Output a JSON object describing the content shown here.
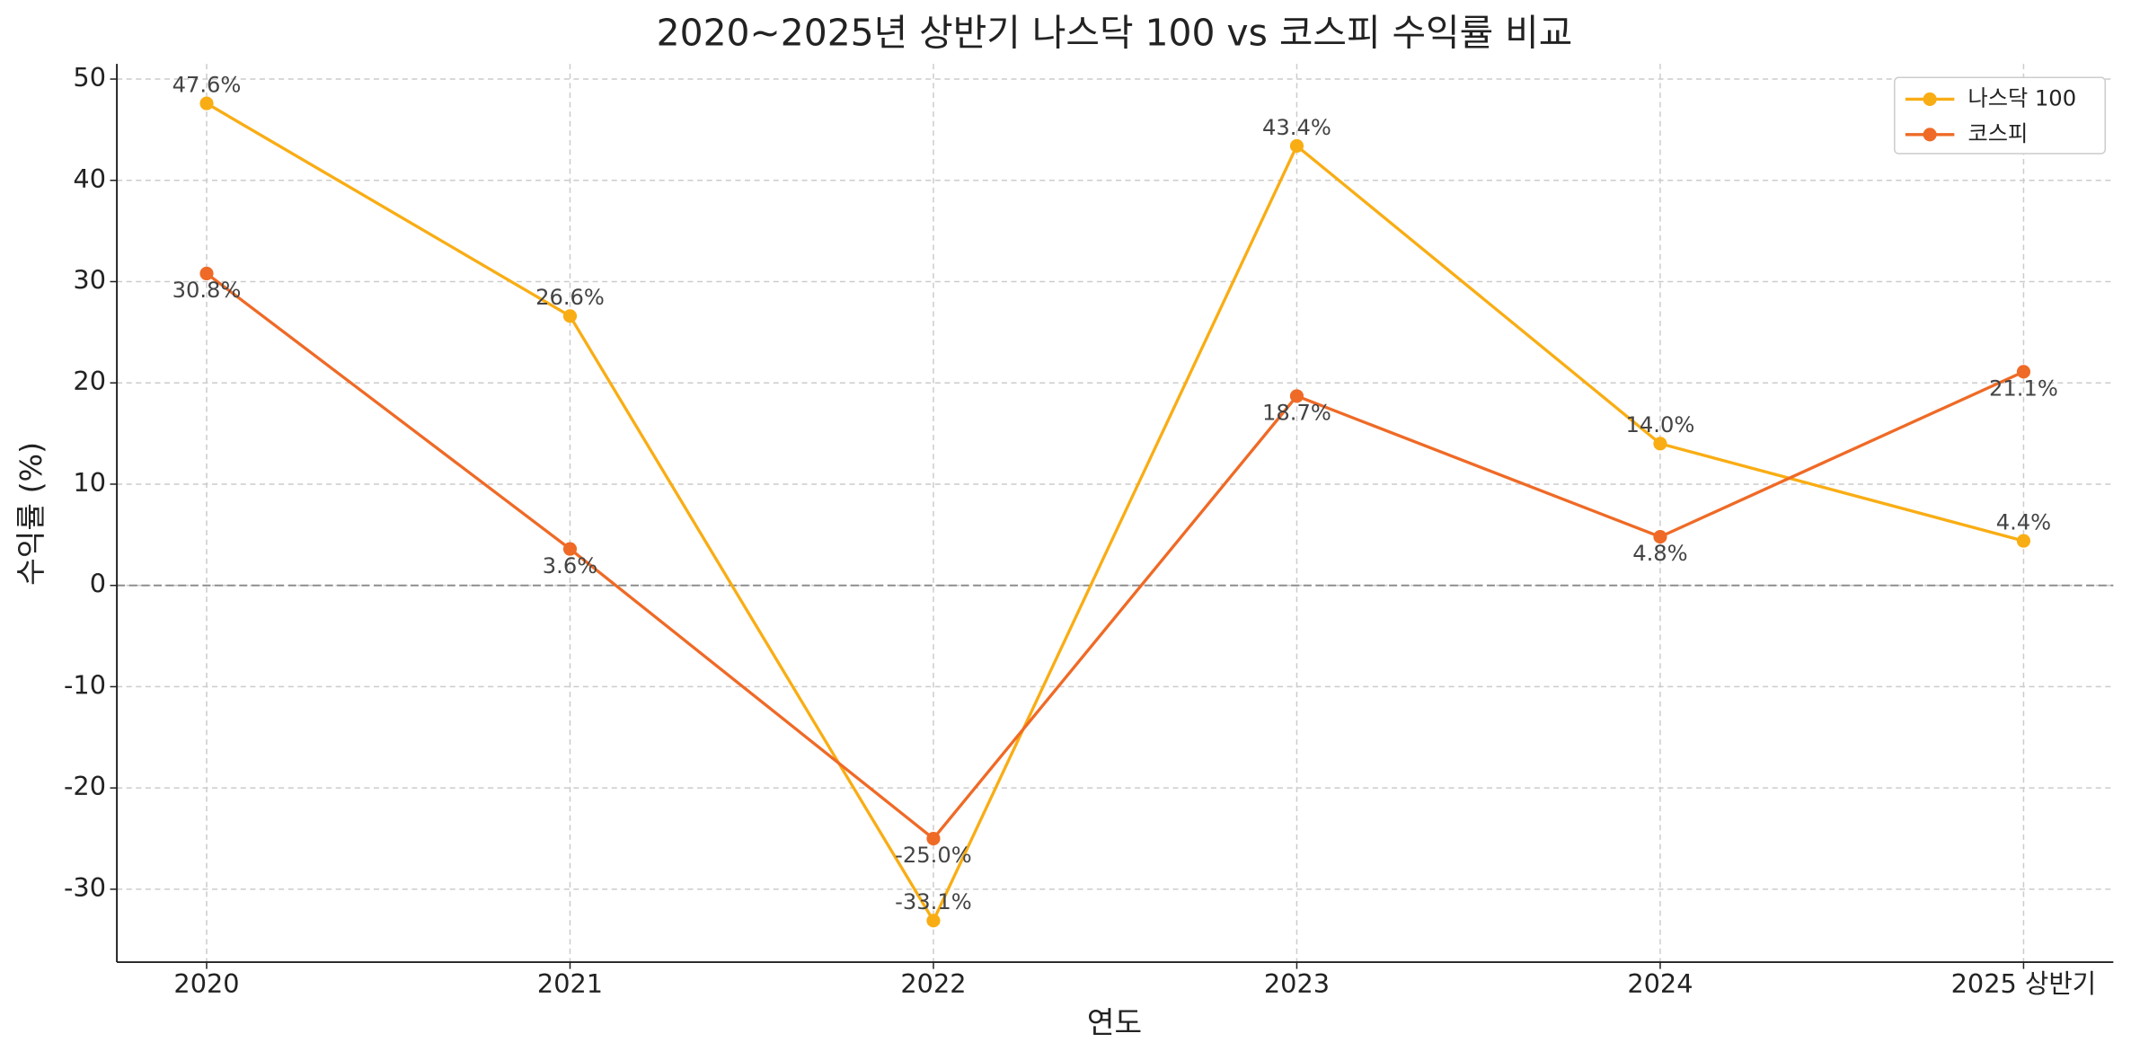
{
  "chart_data": {
    "type": "line",
    "title": "2020~2025년 상반기 나스닥 100 vs 코스피 수익률 비교",
    "x_label": "연도",
    "y_label": "수익률 (%)",
    "categories": [
      "2020",
      "2021",
      "2022",
      "2023",
      "2024",
      "2025 상반기"
    ],
    "series": [
      {
        "name": "나스닥 100",
        "color": "#f9ad14",
        "values": [
          47.6,
          26.6,
          -33.1,
          43.4,
          14.0,
          4.4
        ],
        "value_labels": [
          "47.6%",
          "26.6%",
          "-33.1%",
          "43.4%",
          "14.0%",
          "4.4%"
        ]
      },
      {
        "name": "코스피",
        "color": "#ef6a26",
        "values": [
          30.8,
          3.6,
          -25.0,
          18.7,
          4.8,
          21.1
        ],
        "value_labels": [
          "30.8%",
          "3.6%",
          "-25.0%",
          "18.7%",
          "4.8%",
          "21.1%"
        ]
      }
    ],
    "ylim": [
      -37.2,
      51.5
    ],
    "yticks": [
      -30,
      -20,
      -10,
      0,
      10,
      20,
      30,
      40,
      50
    ],
    "hlines": [
      0
    ],
    "grid": true,
    "legend": "upper right"
  }
}
